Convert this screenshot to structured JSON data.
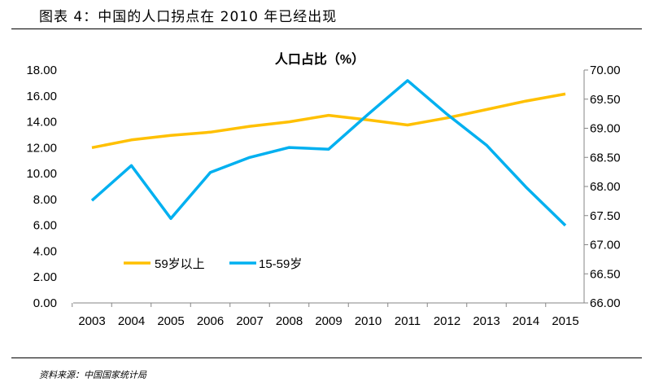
{
  "header": {
    "title": "图表 4：中国的人口拐点在 2010 年已经出现"
  },
  "footer": {
    "source": "资料来源：中国国家统计局"
  },
  "chart_data": {
    "type": "line",
    "title": "人口占比（%）",
    "categories": [
      "2003",
      "2004",
      "2005",
      "2006",
      "2007",
      "2008",
      "2009",
      "2010",
      "2011",
      "2012",
      "2013",
      "2014",
      "2015"
    ],
    "series": [
      {
        "name": "59岁以上",
        "axis": "left",
        "color": "#FFC000",
        "values": [
          12.0,
          12.6,
          12.95,
          13.2,
          13.65,
          14.0,
          14.5,
          14.15,
          13.75,
          14.3,
          14.95,
          15.6,
          16.15
        ]
      },
      {
        "name": "15-59岁",
        "axis": "right",
        "color": "#00B0F0",
        "values": [
          67.76,
          68.36,
          67.45,
          68.24,
          68.5,
          68.67,
          68.64,
          69.24,
          69.82,
          69.24,
          68.71,
          67.99,
          67.33
        ]
      }
    ],
    "left_axis": {
      "ylim": [
        0,
        18
      ],
      "ticks": [
        "0.00",
        "2.00",
        "4.00",
        "6.00",
        "8.00",
        "10.00",
        "12.00",
        "14.00",
        "16.00",
        "18.00"
      ]
    },
    "right_axis": {
      "ylim": [
        66,
        70
      ],
      "ticks": [
        "66.00",
        "66.50",
        "67.00",
        "67.50",
        "68.00",
        "68.50",
        "69.00",
        "69.50",
        "70.00"
      ]
    },
    "grid": false,
    "legend": "lower-left inside"
  }
}
